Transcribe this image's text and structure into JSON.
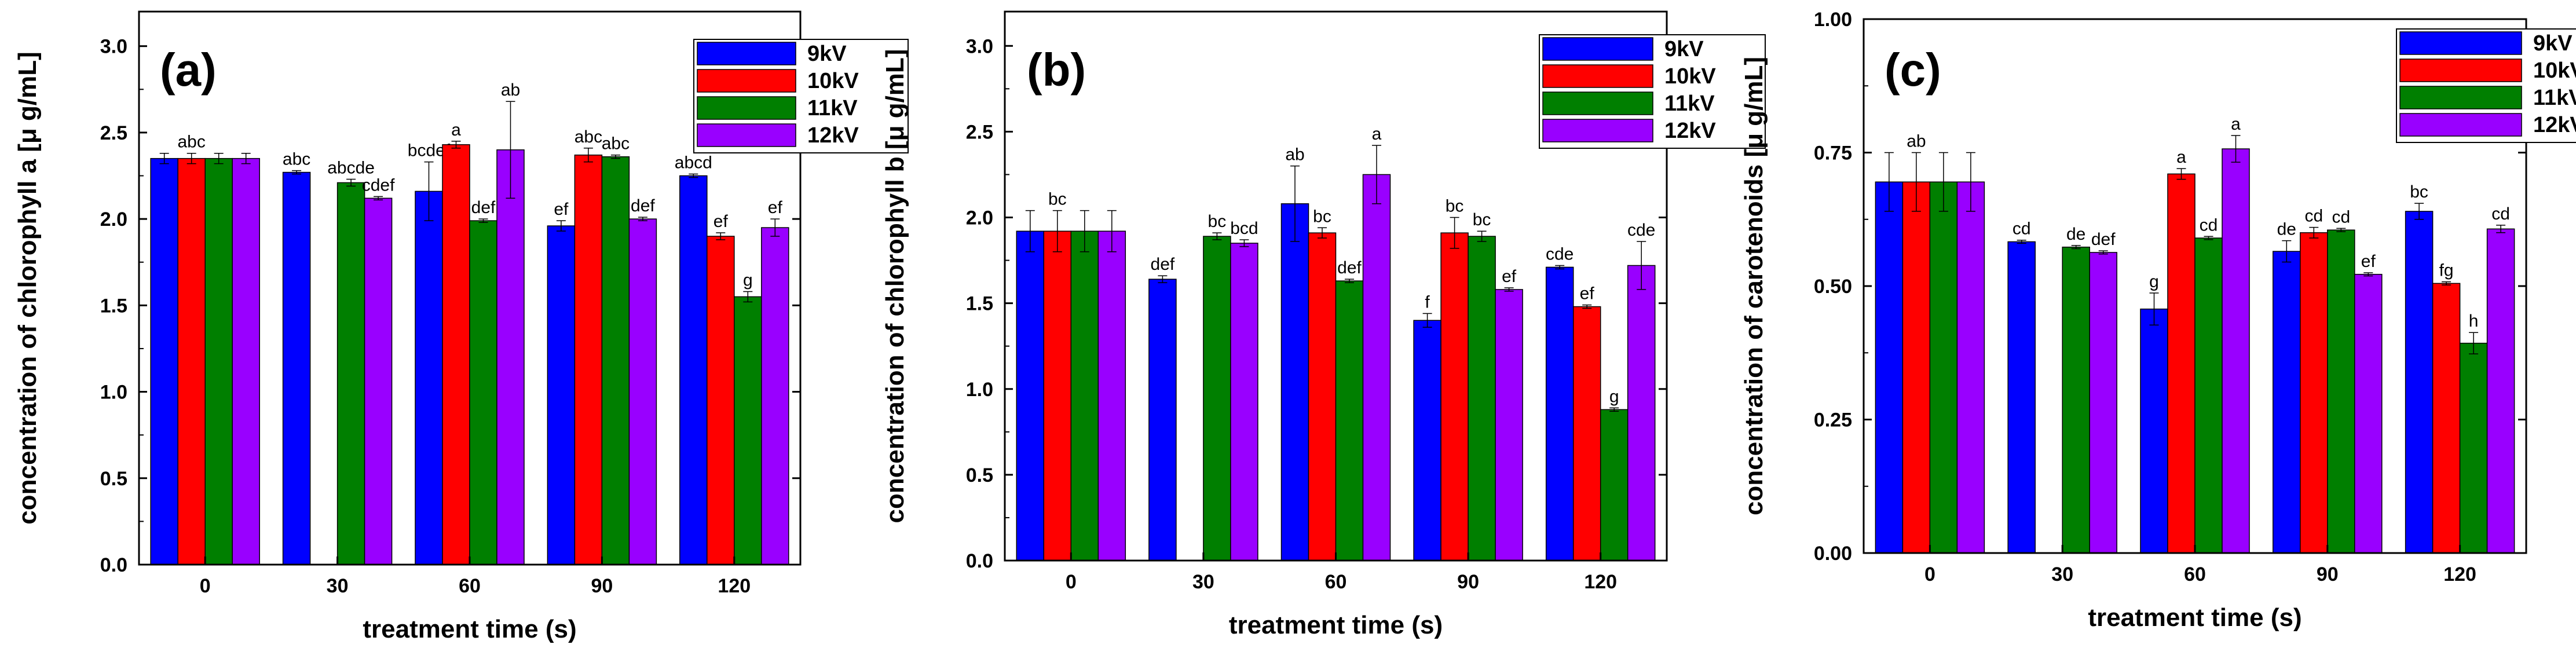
{
  "series_colors": {
    "9kV": "#0000ff",
    "10kV": "#ff0000",
    "11kV": "#007f00",
    "12kV": "#9900ff"
  },
  "chart_data": [
    {
      "type": "bar",
      "panel": "(a)",
      "title": "",
      "xlabel": "treatment time (s)",
      "ylabel": "concentration of chlorophyll a [μ g/mL]",
      "categories": [
        "0",
        "30",
        "60",
        "90",
        "120"
      ],
      "ylim": [
        0,
        3.2
      ],
      "yticks": [
        "0.0",
        "0.5",
        "1.0",
        "1.5",
        "2.0",
        "2.5",
        "3.0"
      ],
      "ytick_values": [
        0,
        0.5,
        1.0,
        1.5,
        2.0,
        2.5,
        3.0
      ],
      "legend_position": "top-right",
      "series": [
        {
          "name": "9kV",
          "color": "#0000ff",
          "values": [
            2.35,
            2.27,
            2.16,
            1.96,
            2.25
          ],
          "errors": [
            0.03,
            0.01,
            0.17,
            0.03,
            0.01
          ],
          "labels": [
            "",
            "abc",
            "bcdef",
            "ef",
            "abcd"
          ]
        },
        {
          "name": "10kV",
          "color": "#ff0000",
          "values": [
            2.35,
            null,
            2.43,
            2.37,
            1.9
          ],
          "errors": [
            0.03,
            null,
            0.02,
            0.04,
            0.02
          ],
          "labels": [
            "abc",
            "",
            "a",
            "abc",
            "ef"
          ]
        },
        {
          "name": "11kV",
          "color": "#007f00",
          "values": [
            2.35,
            2.21,
            1.99,
            2.36,
            1.55
          ],
          "errors": [
            0.03,
            0.02,
            0.01,
            0.01,
            0.03
          ],
          "labels": [
            "",
            "abcde",
            "def",
            "abc",
            "g"
          ]
        },
        {
          "name": "12kV",
          "color": "#9900ff",
          "values": [
            2.35,
            2.12,
            2.4,
            2.0,
            1.95
          ],
          "errors": [
            0.03,
            0.01,
            0.28,
            0.01,
            0.05
          ],
          "labels": [
            "",
            "cdef",
            "ab",
            "def",
            "ef"
          ]
        }
      ]
    },
    {
      "type": "bar",
      "panel": "(b)",
      "title": "",
      "xlabel": "treatment time (s)",
      "ylabel": "concentration of chlorophyll b [μ g/mL]",
      "categories": [
        "0",
        "30",
        "60",
        "90",
        "120"
      ],
      "ylim": [
        0,
        3.2
      ],
      "yticks": [
        "0.0",
        "0.5",
        "1.0",
        "1.5",
        "2.0",
        "2.5",
        "3.0"
      ],
      "ytick_values": [
        0,
        0.5,
        1.0,
        1.5,
        2.0,
        2.5,
        3.0
      ],
      "legend_position": "top-right",
      "series": [
        {
          "name": "9kV",
          "color": "#0000ff",
          "values": [
            1.92,
            1.64,
            2.08,
            1.4,
            1.71
          ],
          "errors": [
            0.12,
            0.02,
            0.22,
            0.04,
            0.01
          ],
          "labels": [
            "",
            "def",
            "ab",
            "f",
            "cde"
          ]
        },
        {
          "name": "10kV",
          "color": "#ff0000",
          "values": [
            1.92,
            null,
            1.91,
            1.91,
            1.48
          ],
          "errors": [
            0.12,
            null,
            0.03,
            0.09,
            0.01
          ],
          "labels": [
            "bc",
            "",
            "bc",
            "bc",
            "ef"
          ]
        },
        {
          "name": "11kV",
          "color": "#007f00",
          "values": [
            1.92,
            1.89,
            1.63,
            1.89,
            0.88
          ],
          "errors": [
            0.12,
            0.02,
            0.01,
            0.03,
            0.01
          ],
          "labels": [
            "",
            "bc",
            "def",
            "bc",
            "g"
          ]
        },
        {
          "name": "12kV",
          "color": "#9900ff",
          "values": [
            1.92,
            1.85,
            2.25,
            1.58,
            1.72
          ],
          "errors": [
            0.12,
            0.02,
            0.17,
            0.01,
            0.14
          ],
          "labels": [
            "",
            "bcd",
            "a",
            "ef",
            "cde"
          ]
        }
      ]
    },
    {
      "type": "bar",
      "panel": "(c)",
      "title": "",
      "xlabel": "treatment time (s)",
      "ylabel": "concentration of carotenoids [μ g/mL]",
      "categories": [
        "0",
        "30",
        "60",
        "90",
        "120"
      ],
      "ylim": [
        0,
        1.0
      ],
      "yticks": [
        "0.00",
        "0.25",
        "0.50",
        "0.75",
        "1.00"
      ],
      "ytick_values": [
        0,
        0.25,
        0.5,
        0.75,
        1.0
      ],
      "legend_position": "top-right",
      "series": [
        {
          "name": "9kV",
          "color": "#0000ff",
          "values": [
            0.695,
            0.583,
            0.457,
            0.565,
            0.64
          ],
          "errors": [
            0.055,
            0.003,
            0.03,
            0.02,
            0.015
          ],
          "labels": [
            "",
            "cd",
            "g",
            "de",
            "bc"
          ]
        },
        {
          "name": "10kV",
          "color": "#ff0000",
          "values": [
            0.695,
            null,
            0.71,
            0.6,
            0.505
          ],
          "errors": [
            0.055,
            null,
            0.01,
            0.01,
            0.003
          ],
          "labels": [
            "ab",
            "",
            "a",
            "cd",
            "fg"
          ]
        },
        {
          "name": "11kV",
          "color": "#007f00",
          "values": [
            0.695,
            0.573,
            0.59,
            0.605,
            0.393
          ],
          "errors": [
            0.055,
            0.003,
            0.003,
            0.003,
            0.02
          ],
          "labels": [
            "",
            "de",
            "cd",
            "cd",
            "h"
          ]
        },
        {
          "name": "12kV",
          "color": "#9900ff",
          "values": [
            0.695,
            0.563,
            0.757,
            0.522,
            0.607
          ],
          "errors": [
            0.055,
            0.003,
            0.025,
            0.003,
            0.007
          ],
          "labels": [
            "",
            "def",
            "a",
            "ef",
            "cd"
          ]
        }
      ]
    }
  ]
}
